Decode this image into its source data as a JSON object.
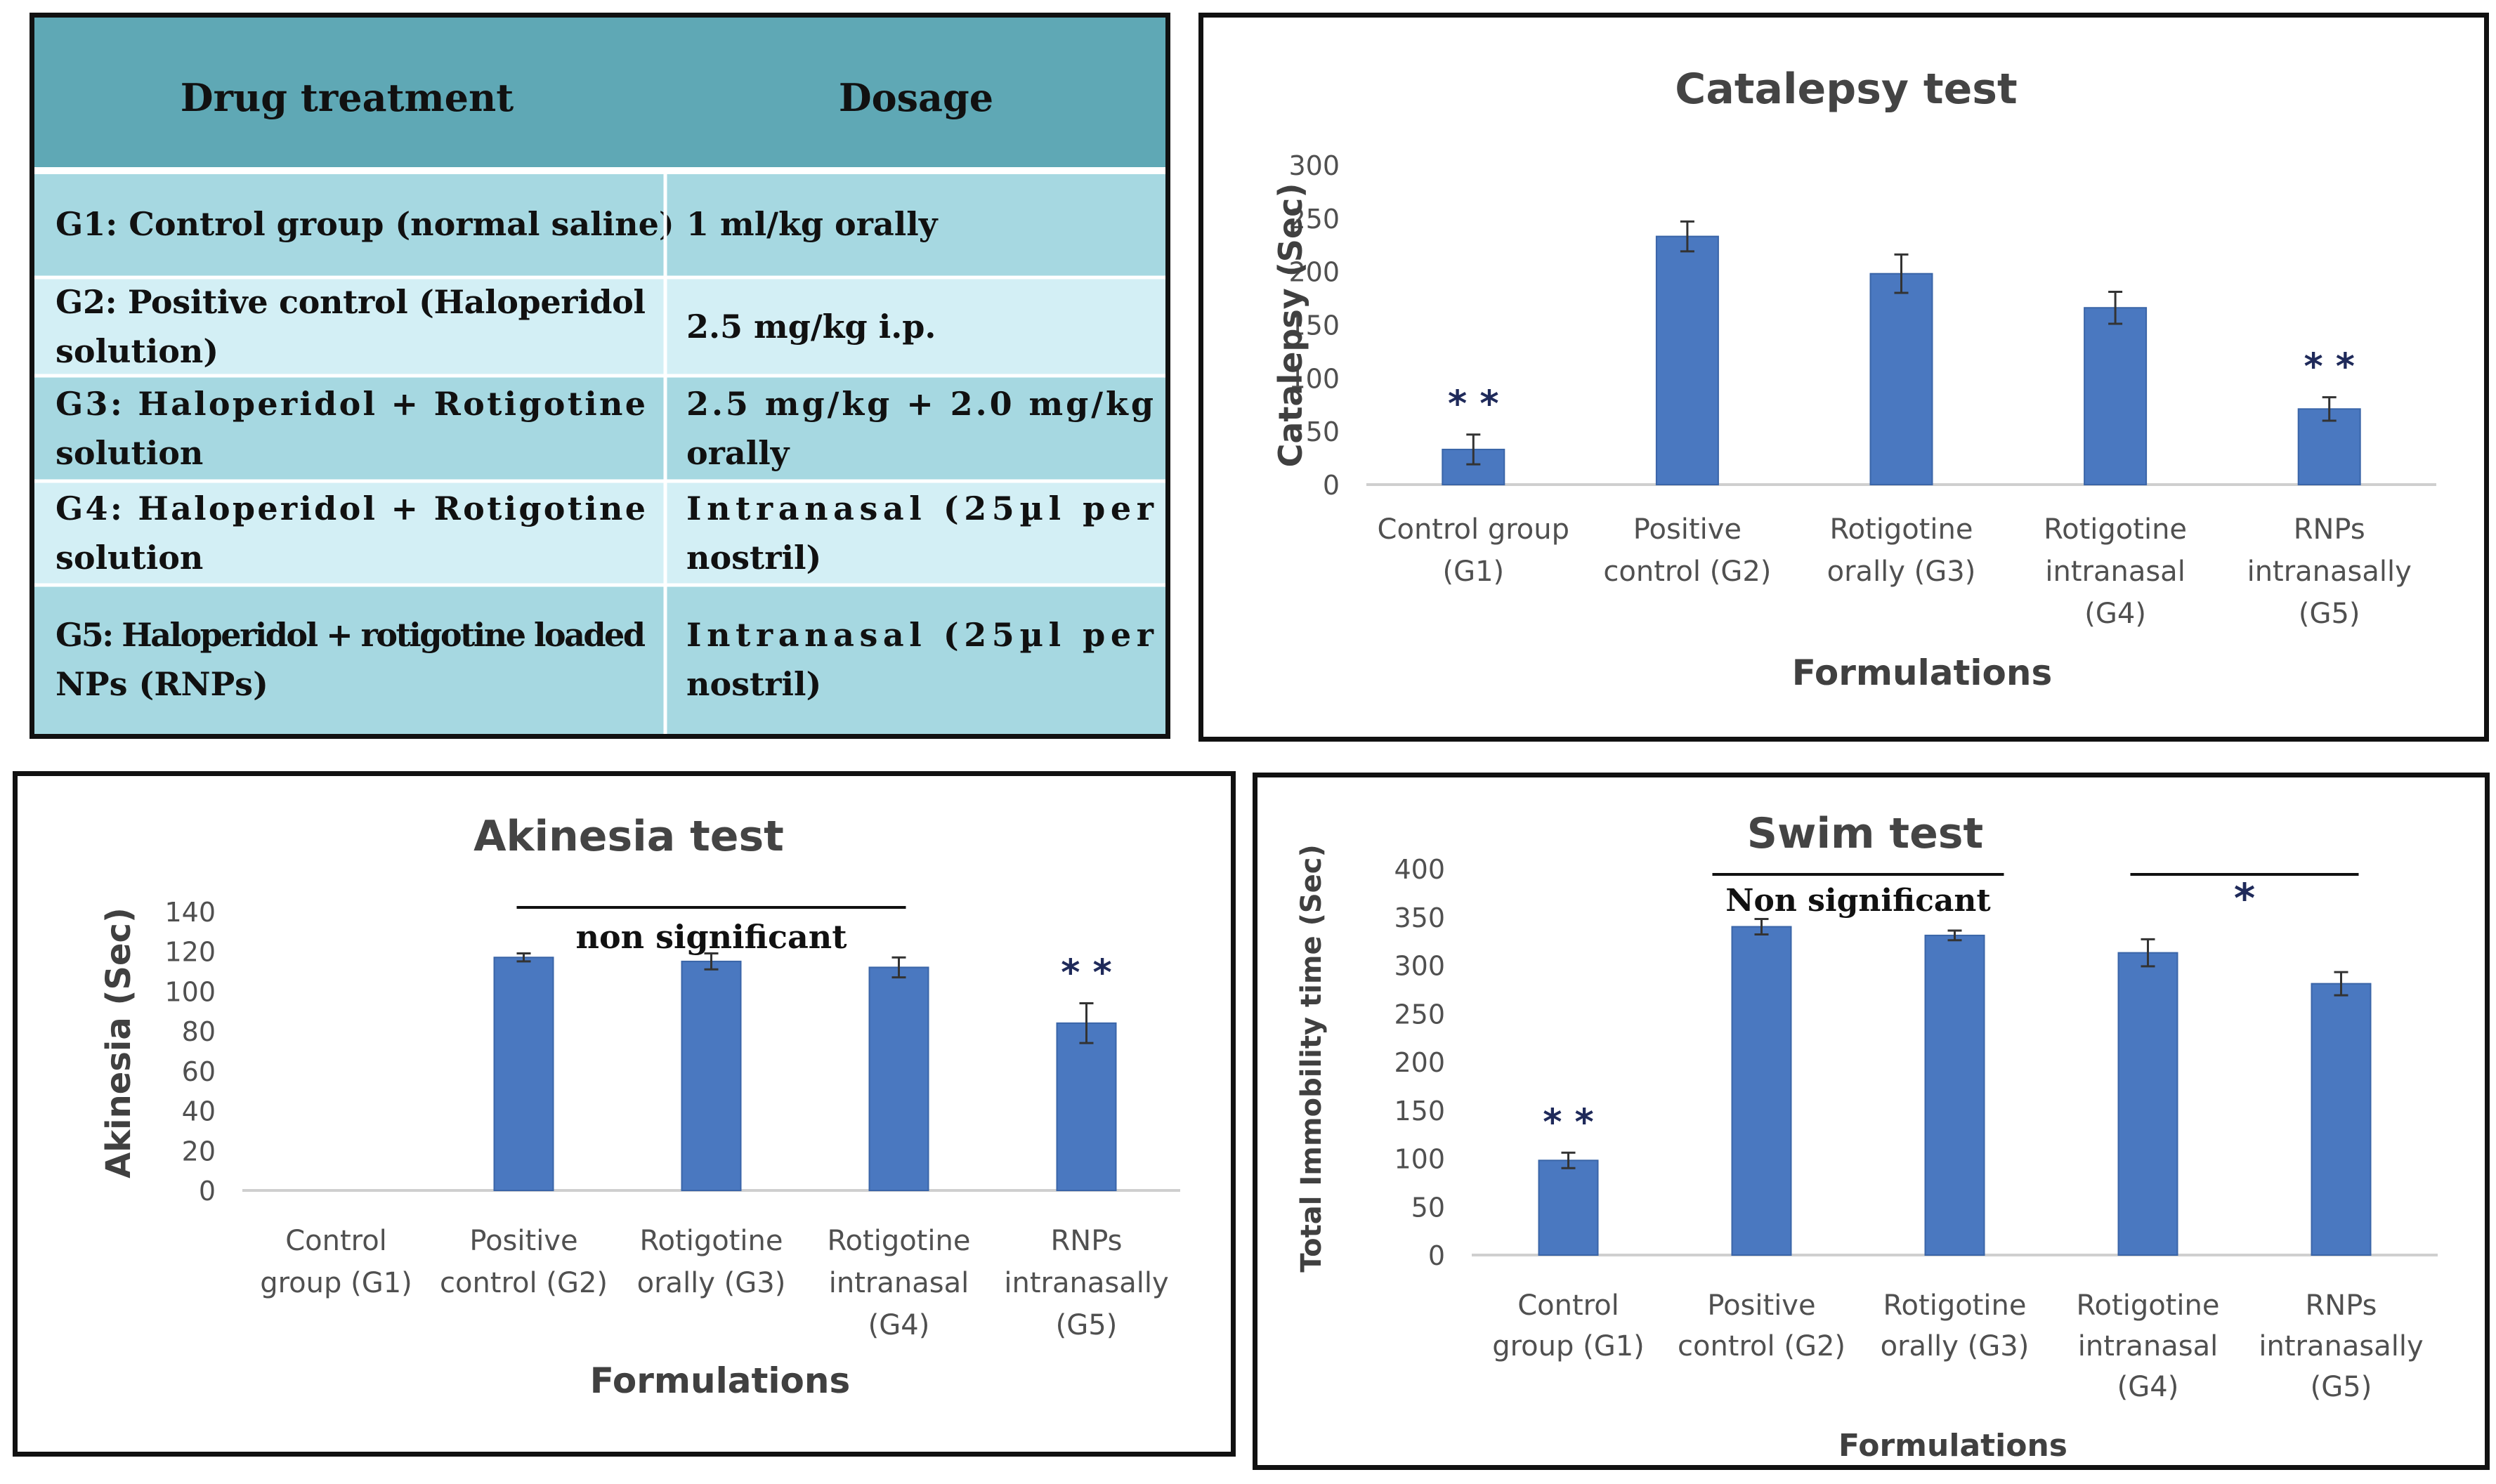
{
  "table": {
    "headers": [
      "Drug treatment",
      "Dosage"
    ],
    "rows": [
      {
        "treatment": [
          "G1: Control group (normal saline)"
        ],
        "dosage": [
          "1 ml/kg orally"
        ]
      },
      {
        "treatment": [
          "G2: Positive control (Haloperidol",
          "solution)"
        ],
        "dosage": [
          "2.5 mg/kg i.p."
        ]
      },
      {
        "treatment": [
          "G3: Haloperidol + Rotigotine",
          "solution"
        ],
        "dosage": [
          "2.5 mg/kg + 2.0 mg/kg",
          "orally"
        ]
      },
      {
        "treatment": [
          "G4: Haloperidol + Rotigotine",
          "solution"
        ],
        "dosage": [
          "Intranasal (25µl per",
          "nostril)"
        ]
      },
      {
        "treatment": [
          "G5: Haloperidol + rotigotine loaded",
          "NPs (RNPs)"
        ],
        "dosage": [
          "Intranasal (25µl per",
          "nostril)"
        ]
      }
    ],
    "colors": {
      "header": "#5fa8b5",
      "row_dark": "#a6d8e1",
      "row_light": "#d3eff5",
      "divider": "#ffffff"
    }
  },
  "colors": {
    "bar": "#4a78c0",
    "bar_edge": "#3a65a8",
    "error": "#333333",
    "axis_line": "#cfcfcf",
    "star": "#1f2a5a"
  },
  "chart_data": [
    {
      "id": "catalepsy",
      "type": "bar",
      "title": "Catalepsy test",
      "xlabel": "Formulations",
      "ylabel": "Catalepsy (Sec)",
      "ylim": [
        0,
        300
      ],
      "yticks": [
        "0",
        "50",
        "100",
        "150",
        "200",
        "250",
        "300"
      ],
      "categories": [
        [
          "Control group",
          "(G1)"
        ],
        [
          "Positive",
          "control (G2)"
        ],
        [
          "Rotigotine",
          "orally (G3)"
        ],
        [
          "Rotigotine",
          "intranasal",
          "(G4)"
        ],
        [
          "RNPs",
          "intranasally",
          "(G5)"
        ]
      ],
      "values": [
        33,
        233,
        198,
        166,
        71
      ],
      "errors": [
        14,
        14,
        18,
        15,
        11
      ],
      "annotations": [
        "* *",
        "",
        "",
        "",
        "* *"
      ]
    },
    {
      "id": "akinesia",
      "type": "bar",
      "title": "Akinesia test",
      "xlabel": "Formulations",
      "ylabel": "Akinesia (Sec)",
      "ylim": [
        0,
        140
      ],
      "yticks": [
        "0",
        "20",
        "40",
        "60",
        "80",
        "100",
        "120",
        "140"
      ],
      "categories": [
        [
          "Control",
          "group (G1)"
        ],
        [
          "Positive",
          "control (G2)"
        ],
        [
          "Rotigotine",
          "orally (G3)"
        ],
        [
          "Rotigotine",
          "intranasal",
          "(G4)"
        ],
        [
          "RNPs",
          "intranasally",
          "(G5)"
        ]
      ],
      "values": [
        0,
        117,
        115,
        112,
        84
      ],
      "errors": [
        0,
        2,
        4,
        5,
        10
      ],
      "annotations": [
        "",
        "",
        "",
        "",
        "* *"
      ],
      "bracket": {
        "label": "non significant",
        "from": 1,
        "to": 3
      }
    },
    {
      "id": "swim",
      "type": "bar",
      "title": "Swim test",
      "xlabel": "Formulations",
      "ylabel": "Total Immobility time (Sec)",
      "ylim": [
        0,
        400
      ],
      "yticks": [
        "0",
        "50",
        "100",
        "150",
        "200",
        "250",
        "300",
        "350",
        "400"
      ],
      "categories": [
        [
          "Control",
          "group (G1)"
        ],
        [
          "Positive",
          "control (G2)"
        ],
        [
          "Rotigotine",
          "orally (G3)"
        ],
        [
          "Rotigotine",
          "intranasal",
          "(G4)"
        ],
        [
          "RNPs",
          "intranasally",
          "(G5)"
        ]
      ],
      "values": [
        98,
        340,
        331,
        313,
        281
      ],
      "errors": [
        8,
        8,
        5,
        14,
        12
      ],
      "annotations": [
        "* *",
        "",
        "",
        "",
        ""
      ],
      "brackets": [
        {
          "label": "Non significant",
          "from": 1,
          "to": 2
        },
        {
          "label": "*",
          "from": 3,
          "to": 4
        }
      ]
    }
  ]
}
